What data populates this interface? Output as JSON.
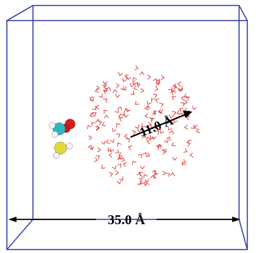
{
  "figure": {
    "box_label": "35.0 Å",
    "radius_label": "11.0 Å"
  },
  "colors": {
    "box_edges": "#3a44a8",
    "water_molecules": "#e23a3a",
    "arrows": "#000000",
    "carbon": "#2fb8c0",
    "oxygen": "#d61c1c",
    "hydrogen": "#f4f4f4",
    "sulfur": "#e3d83a"
  }
}
